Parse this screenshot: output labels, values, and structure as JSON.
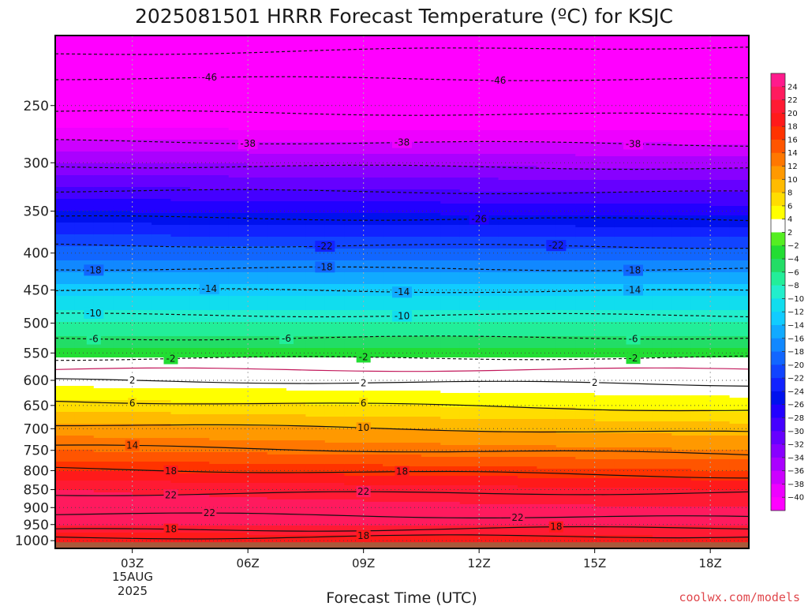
{
  "chart_data": {
    "type": "heatmap",
    "title": "2025081501 HRRR Forecast Temperature (ºC) for KSJC",
    "xlabel": "Forecast Time (UTC)",
    "ylabel": "",
    "credit": "coolwx.com/models",
    "x_ticks": [
      {
        "label": "03Z",
        "hour": 3
      },
      {
        "label": "06Z",
        "hour": 6
      },
      {
        "label": "09Z",
        "hour": 9
      },
      {
        "label": "12Z",
        "hour": 12
      },
      {
        "label": "15Z",
        "hour": 15
      },
      {
        "label": "18Z",
        "hour": 18
      }
    ],
    "x_date_lines": [
      "15AUG",
      "2025"
    ],
    "xlim": [
      1,
      19
    ],
    "y_ticks": [
      250,
      300,
      350,
      400,
      450,
      500,
      550,
      600,
      650,
      700,
      750,
      800,
      850,
      900,
      950,
      1000
    ],
    "ylim": [
      1025,
      200
    ],
    "y_scale": "log",
    "ground_level_hpa": 1005,
    "ground_color": "#a9593a",
    "grid": true,
    "colorbar": {
      "levels": [
        24,
        22,
        20,
        18,
        16,
        14,
        12,
        10,
        8,
        6,
        4,
        2,
        -2,
        -4,
        -6,
        -8,
        -10,
        -12,
        -14,
        -16,
        -18,
        -20,
        -22,
        -24,
        -26,
        -28,
        -30,
        -32,
        -34,
        -36,
        -38,
        -40
      ],
      "colors": [
        "#ff1a8c",
        "#ff1a5e",
        "#ff1a33",
        "#ff1a1a",
        "#ff3300",
        "#ff5500",
        "#ff7700",
        "#ff9900",
        "#ffbb00",
        "#ffdd00",
        "#ffff00",
        "#ffffff",
        "#55ee22",
        "#22dd33",
        "#22dd66",
        "#22ee99",
        "#22eecc",
        "#11ddee",
        "#11ccff",
        "#11aaff",
        "#1188ff",
        "#1166ff",
        "#1144ff",
        "#1122ff",
        "#0011ee",
        "#2200ff",
        "#4400ff",
        "#6600ff",
        "#8800ff",
        "#aa00ff",
        "#cc00ff",
        "#ee00ff",
        "#ff00ff"
      ]
    },
    "profile_start": [
      {
        "p": 1000,
        "t": 18
      },
      {
        "p": 975,
        "t": 20
      },
      {
        "p": 950,
        "t": 22
      },
      {
        "p": 900,
        "t": 23
      },
      {
        "p": 850,
        "t": 22
      },
      {
        "p": 800,
        "t": 18
      },
      {
        "p": 750,
        "t": 14
      },
      {
        "p": 700,
        "t": 11
      },
      {
        "p": 650,
        "t": 7
      },
      {
        "p": 600,
        "t": 3
      },
      {
        "p": 575,
        "t": 0
      },
      {
        "p": 550,
        "t": -3
      },
      {
        "p": 500,
        "t": -8
      },
      {
        "p": 450,
        "t": -13
      },
      {
        "p": 400,
        "t": -19
      },
      {
        "p": 350,
        "t": -26
      },
      {
        "p": 300,
        "t": -34
      },
      {
        "p": 250,
        "t": -44
      },
      {
        "p": 200,
        "t": -54
      }
    ],
    "profile_end": [
      {
        "p": 1000,
        "t": 19
      },
      {
        "p": 975,
        "t": 21
      },
      {
        "p": 950,
        "t": 22
      },
      {
        "p": 900,
        "t": 22
      },
      {
        "p": 850,
        "t": 20
      },
      {
        "p": 800,
        "t": 16
      },
      {
        "p": 750,
        "t": 12
      },
      {
        "p": 700,
        "t": 9
      },
      {
        "p": 650,
        "t": 5
      },
      {
        "p": 600,
        "t": 2
      },
      {
        "p": 575,
        "t": 0
      },
      {
        "p": 550,
        "t": -3
      },
      {
        "p": 500,
        "t": -8
      },
      {
        "p": 450,
        "t": -13
      },
      {
        "p": 400,
        "t": -19
      },
      {
        "p": 350,
        "t": -27
      },
      {
        "p": 300,
        "t": -35
      },
      {
        "p": 250,
        "t": -44
      },
      {
        "p": 200,
        "t": -55
      }
    ],
    "contours": [
      {
        "value": -50,
        "p_start": 212,
        "p_end": 207,
        "labels": []
      },
      {
        "value": -46,
        "p_start": 229,
        "p_end": 230,
        "labels": [
          {
            "hour": 5.0
          },
          {
            "hour": 12.5
          }
        ]
      },
      {
        "value": -42,
        "p_start": 255,
        "p_end": 258,
        "labels": []
      },
      {
        "value": -38,
        "p_start": 280,
        "p_end": 283,
        "labels": [
          {
            "hour": 6.0
          },
          {
            "hour": 10.0
          },
          {
            "hour": 16.0
          }
        ]
      },
      {
        "value": -34,
        "p_start": 303,
        "p_end": 305,
        "labels": []
      },
      {
        "value": -30,
        "p_start": 328,
        "p_end": 330,
        "labels": []
      },
      {
        "value": -26,
        "p_start": 357,
        "p_end": 360,
        "labels": [
          {
            "hour": 12.0
          }
        ]
      },
      {
        "value": -22,
        "p_start": 390,
        "p_end": 392,
        "labels": [
          {
            "hour": 8.0
          },
          {
            "hour": 14.0
          }
        ]
      },
      {
        "value": -18,
        "p_start": 420,
        "p_end": 421,
        "labels": [
          {
            "hour": 2.0
          },
          {
            "hour": 8.0
          },
          {
            "hour": 16.0
          }
        ]
      },
      {
        "value": -14,
        "p_start": 450,
        "p_end": 452,
        "labels": [
          {
            "hour": 5.0
          },
          {
            "hour": 10.0
          },
          {
            "hour": 16.0
          }
        ]
      },
      {
        "value": -10,
        "p_start": 487,
        "p_end": 488,
        "labels": [
          {
            "hour": 2.0
          },
          {
            "hour": 10.0
          }
        ]
      },
      {
        "value": -6,
        "p_start": 525,
        "p_end": 523,
        "labels": [
          {
            "hour": 2.0
          },
          {
            "hour": 7.0
          },
          {
            "hour": 16.0
          }
        ]
      },
      {
        "value": -2,
        "p_start": 560,
        "p_end": 558,
        "labels": [
          {
            "hour": 4.0
          },
          {
            "hour": 9.0
          },
          {
            "hour": 16.0
          }
        ]
      },
      {
        "value": 0,
        "p_start": 580,
        "p_end": 580,
        "labels": []
      },
      {
        "value": 2,
        "p_start": 600,
        "p_end": 608,
        "labels": [
          {
            "hour": 3.0
          },
          {
            "hour": 9.0
          },
          {
            "hour": 15.0
          }
        ]
      },
      {
        "value": 6,
        "p_start": 640,
        "p_end": 660,
        "labels": [
          {
            "hour": 3.0
          },
          {
            "hour": 9.0
          }
        ]
      },
      {
        "value": 10,
        "p_start": 690,
        "p_end": 710,
        "labels": [
          {
            "hour": 9.0
          }
        ]
      },
      {
        "value": 14,
        "p_start": 740,
        "p_end": 760,
        "labels": [
          {
            "hour": 3.0
          }
        ]
      },
      {
        "value": 18,
        "p_start": 795,
        "p_end": 815,
        "labels": [
          {
            "hour": 4.0
          },
          {
            "hour": 10.0
          }
        ]
      },
      {
        "value": 22,
        "p_start": 862,
        "p_end": 858,
        "labels": [
          {
            "hour": 4.0
          },
          {
            "hour": 9.0
          }
        ]
      },
      {
        "value": 22,
        "p_start": 918,
        "p_end": 930,
        "labels": [
          {
            "hour": 5.0
          },
          {
            "hour": 13.0
          }
        ]
      },
      {
        "value": 18,
        "p_start": 968,
        "p_end": 960,
        "labels": [
          {
            "hour": 4.0
          },
          {
            "hour": 14.0
          }
        ]
      },
      {
        "value": 18,
        "p_start": 990,
        "p_end": 985,
        "labels": [
          {
            "hour": 9.0
          }
        ]
      }
    ]
  }
}
